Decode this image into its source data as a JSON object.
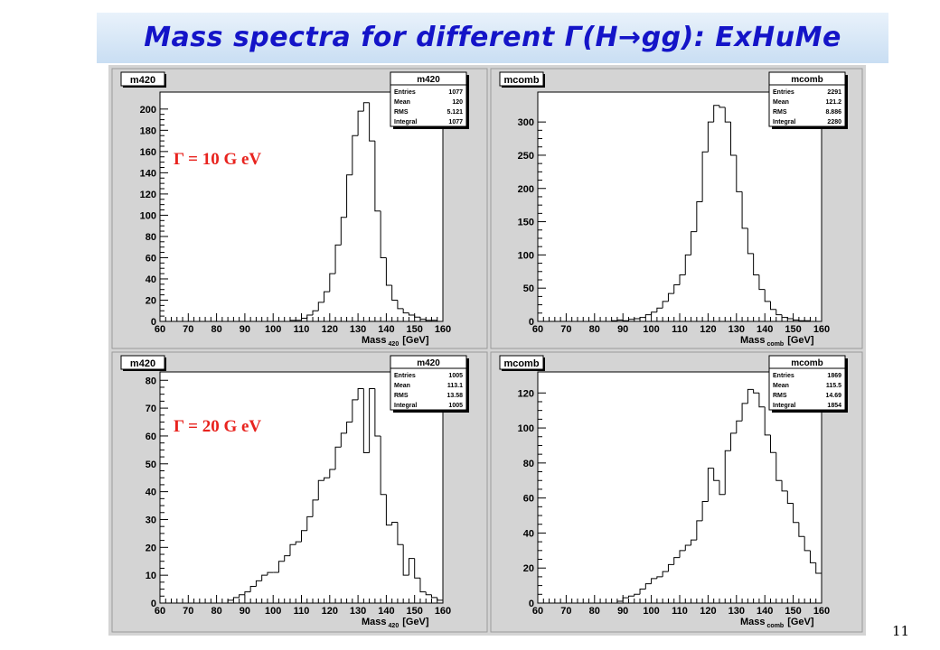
{
  "slide": {
    "title": "Mass spectra for different Γ(H→gg): ExHuMe",
    "page_number": "11"
  },
  "colors": {
    "title": "#1414c8",
    "annotation": "#e8231e",
    "pad_bg": "#ffffff",
    "frame_bg": "#d4d4d4"
  },
  "chart_data": [
    {
      "type": "histogram",
      "pad_label": "m420",
      "stats": {
        "title": "m420",
        "rows": [
          [
            "Entries",
            "1077"
          ],
          [
            "Mean",
            "120"
          ],
          [
            "RMS",
            "5.121"
          ],
          [
            "Integral",
            "1077"
          ]
        ]
      },
      "annotation": "Γ = 10 G eV",
      "xlabel_main": "Mass",
      "xlabel_sub": "420",
      "xlabel_unit": "[GeV]",
      "xlim": [
        60,
        160
      ],
      "ylim": [
        0,
        216
      ],
      "xticks": [
        60,
        70,
        80,
        90,
        100,
        110,
        120,
        130,
        140,
        150,
        160
      ],
      "yticks": [
        0,
        20,
        40,
        60,
        80,
        100,
        120,
        140,
        160,
        180,
        200
      ],
      "bin_edges_start": 60,
      "bin_width": 2,
      "values": [
        0,
        0,
        0,
        0,
        0,
        0,
        0,
        0,
        0,
        0,
        0,
        0,
        0,
        0,
        0,
        0,
        0,
        0,
        0,
        0,
        0,
        0,
        0,
        1,
        1,
        3,
        6,
        10,
        18,
        28,
        45,
        72,
        98,
        138,
        175,
        198,
        206,
        170,
        104,
        60,
        34,
        20,
        12,
        8,
        6,
        4,
        2,
        1,
        1,
        0
      ]
    },
    {
      "type": "histogram",
      "pad_label": "mcomb",
      "stats": {
        "title": "mcomb",
        "rows": [
          [
            "Entries",
            "2291"
          ],
          [
            "Mean",
            "121.2"
          ],
          [
            "RMS",
            "8.886"
          ],
          [
            "Integral",
            "2280"
          ]
        ]
      },
      "annotation": "",
      "xlabel_main": "Mass",
      "xlabel_sub": "comb",
      "xlabel_unit": "[GeV]",
      "xlim": [
        60,
        160
      ],
      "ylim": [
        0,
        345
      ],
      "xticks": [
        60,
        70,
        80,
        90,
        100,
        110,
        120,
        130,
        140,
        150,
        160
      ],
      "yticks": [
        0,
        50,
        100,
        150,
        200,
        250,
        300
      ],
      "bin_edges_start": 60,
      "bin_width": 2,
      "values": [
        0,
        0,
        0,
        0,
        0,
        0,
        0,
        0,
        0,
        0,
        0,
        0,
        0,
        1,
        2,
        1,
        3,
        4,
        6,
        10,
        14,
        20,
        30,
        42,
        55,
        70,
        100,
        135,
        180,
        255,
        300,
        325,
        322,
        300,
        250,
        195,
        140,
        102,
        70,
        48,
        30,
        18,
        10,
        6,
        4,
        2,
        1,
        1,
        0,
        0
      ]
    },
    {
      "type": "histogram",
      "pad_label": "m420",
      "stats": {
        "title": "m420",
        "rows": [
          [
            "Entries",
            "1005"
          ],
          [
            "Mean",
            "113.1"
          ],
          [
            "RMS",
            "13.58"
          ],
          [
            "Integral",
            "1005"
          ]
        ]
      },
      "annotation": "Γ = 20 G eV",
      "xlabel_main": "Mass",
      "xlabel_sub": "420",
      "xlabel_unit": "[GeV]",
      "xlim": [
        60,
        160
      ],
      "ylim": [
        0,
        83
      ],
      "xticks": [
        60,
        70,
        80,
        90,
        100,
        110,
        120,
        130,
        140,
        150,
        160
      ],
      "yticks": [
        0,
        10,
        20,
        30,
        40,
        50,
        60,
        70,
        80
      ],
      "bin_edges_start": 60,
      "bin_width": 2,
      "values": [
        0,
        0,
        0,
        0,
        0,
        0,
        0,
        0,
        0,
        0,
        0,
        0,
        1,
        2,
        3,
        4,
        6,
        8,
        10,
        11,
        11,
        15,
        17,
        21,
        22,
        26,
        31,
        37,
        44,
        45,
        48,
        56,
        61,
        65,
        73,
        77,
        54,
        77,
        60,
        39,
        28,
        29,
        21,
        10,
        16,
        9,
        4,
        3,
        2,
        1
      ]
    },
    {
      "type": "histogram",
      "pad_label": "mcomb",
      "stats": {
        "title": "mcomb",
        "rows": [
          [
            "Entries",
            "1869"
          ],
          [
            "Mean",
            "115.5"
          ],
          [
            "RMS",
            "14.69"
          ],
          [
            "Integral",
            "1854"
          ]
        ]
      },
      "annotation": "",
      "xlabel_main": "Mass",
      "xlabel_sub": "comb",
      "xlabel_unit": "[GeV]",
      "xlim": [
        60,
        160
      ],
      "ylim": [
        0,
        132
      ],
      "xticks": [
        60,
        70,
        80,
        90,
        100,
        110,
        120,
        130,
        140,
        150,
        160
      ],
      "yticks": [
        0,
        20,
        40,
        60,
        80,
        100,
        120
      ],
      "bin_edges_start": 60,
      "bin_width": 2,
      "values": [
        0,
        0,
        0,
        0,
        0,
        0,
        0,
        0,
        0,
        0,
        0,
        0,
        0,
        0,
        1,
        3,
        4,
        5,
        8,
        11,
        14,
        15,
        18,
        22,
        26,
        30,
        33,
        36,
        47,
        58,
        77,
        70,
        62,
        87,
        97,
        104,
        114,
        122,
        120,
        112,
        96,
        86,
        70,
        64,
        57,
        46,
        38,
        30,
        23,
        17
      ]
    }
  ]
}
